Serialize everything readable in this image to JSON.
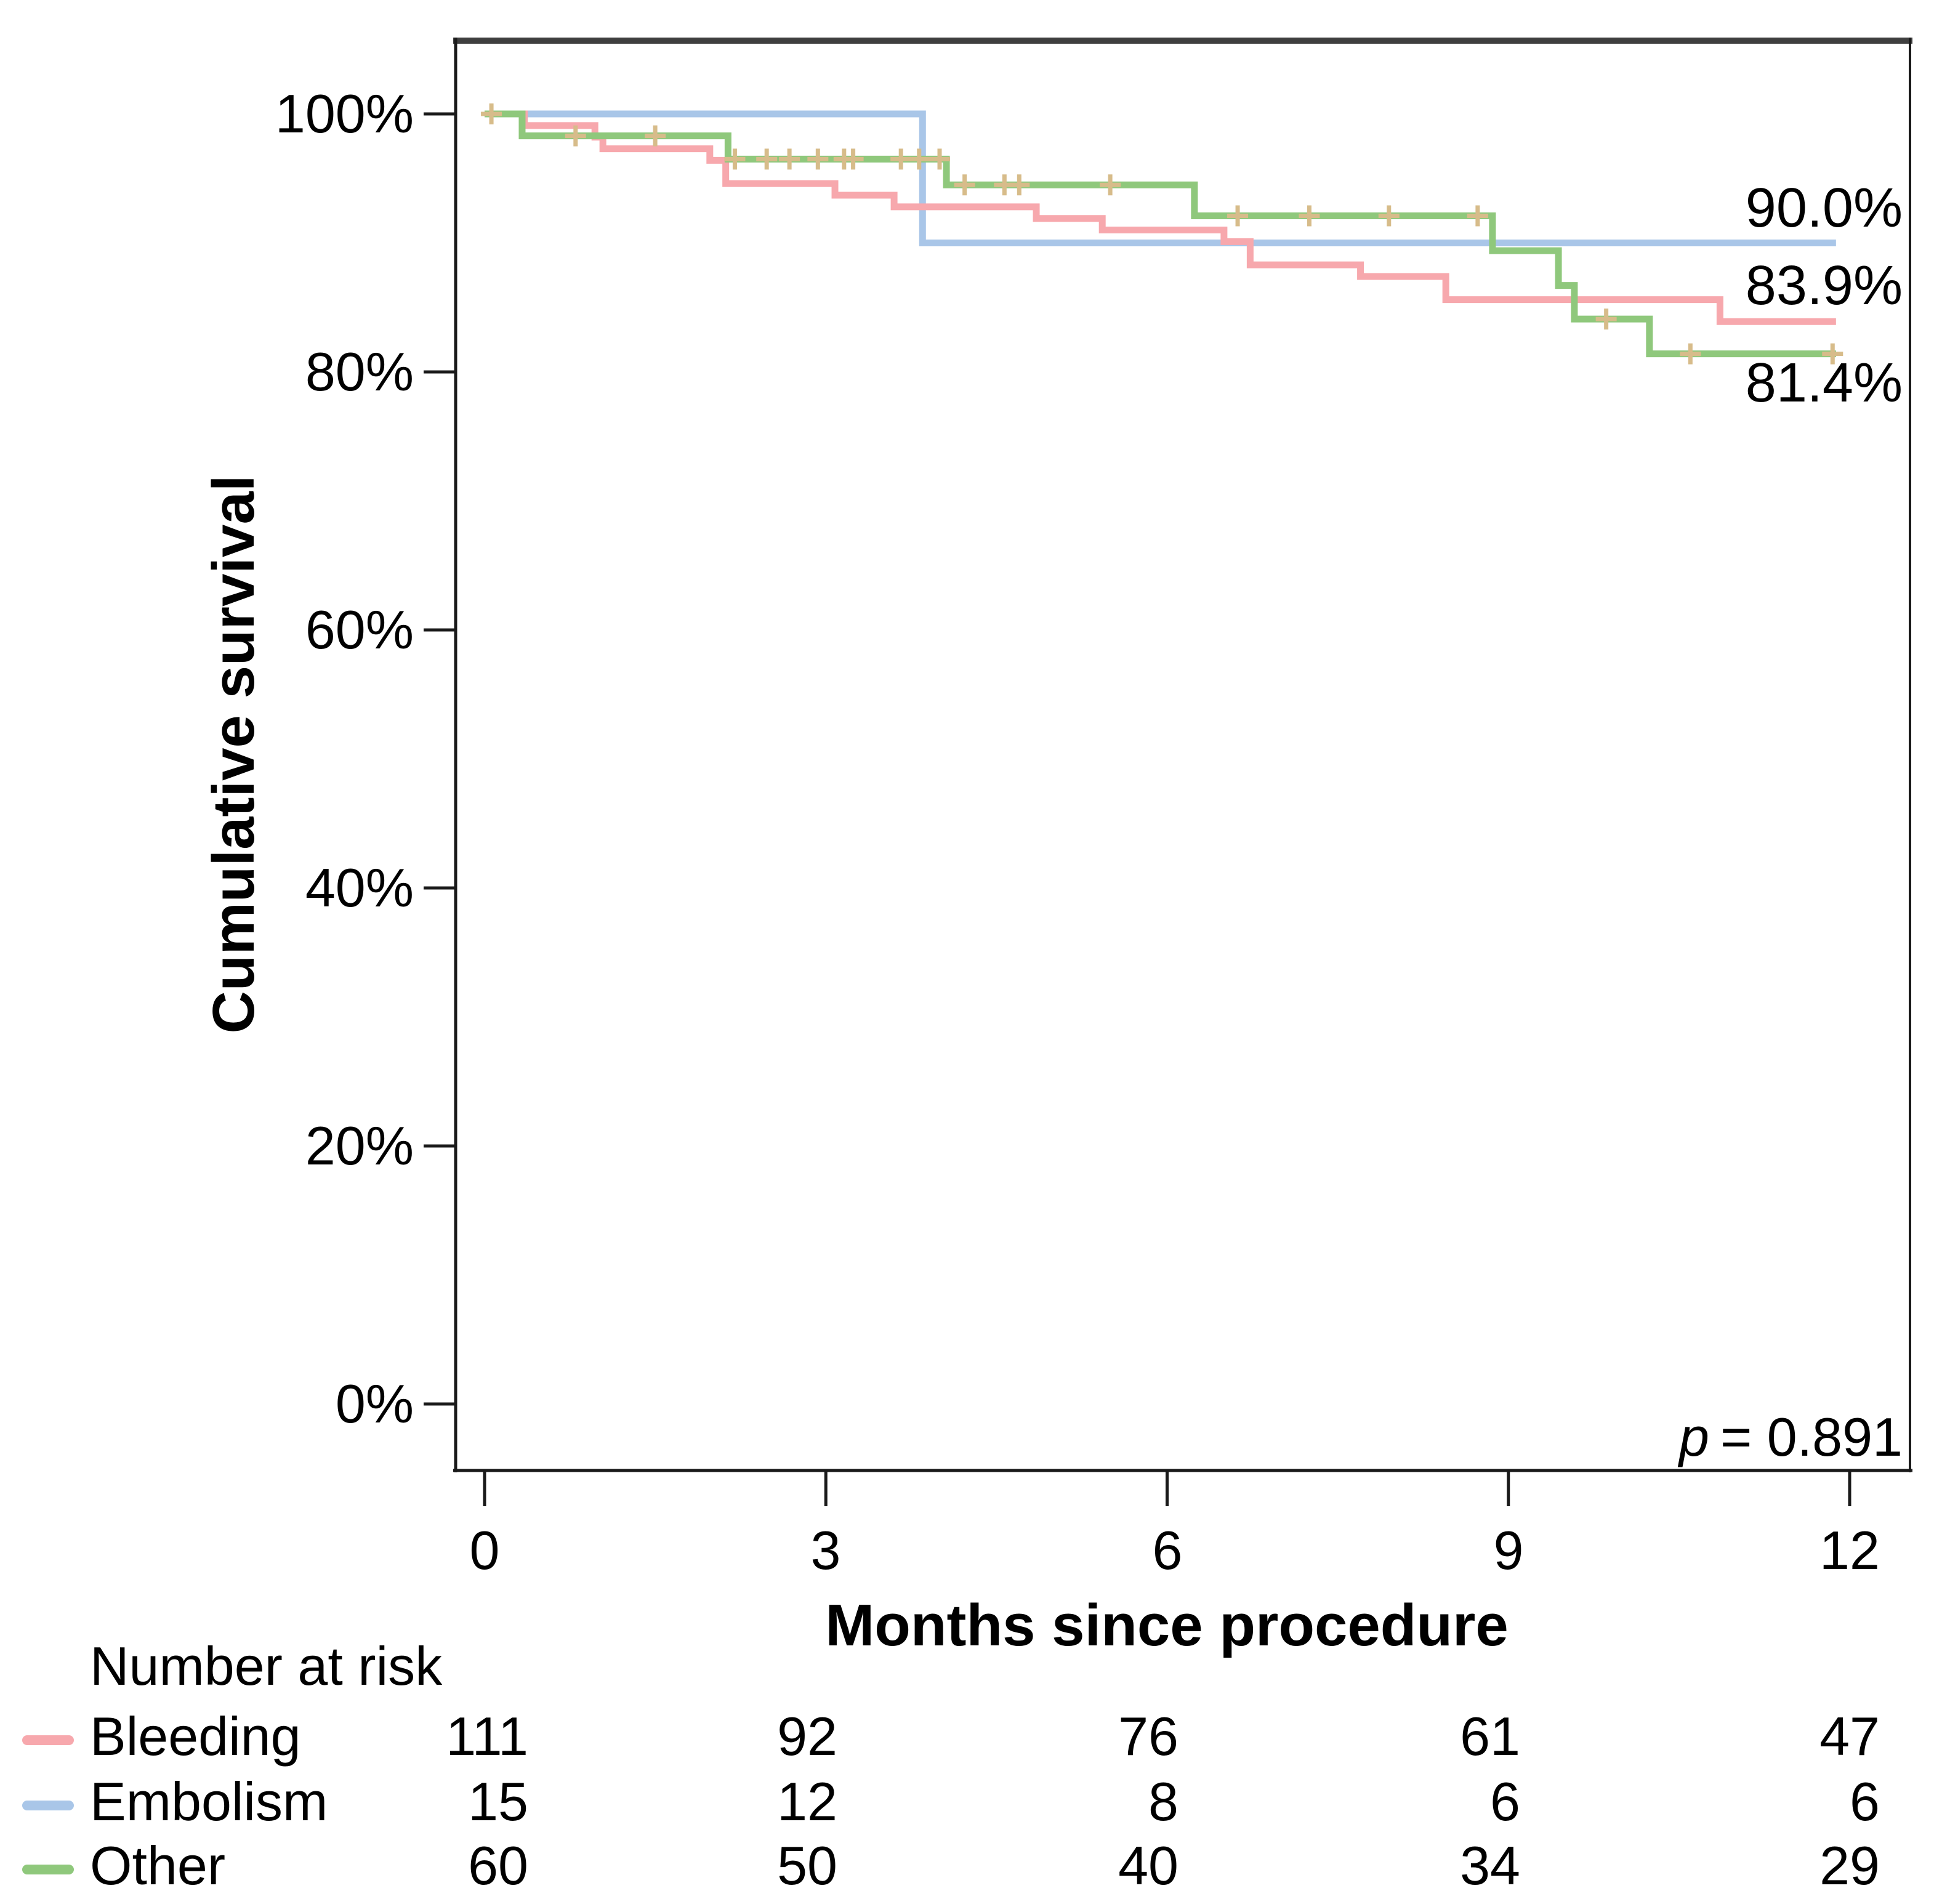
{
  "y_axis": {
    "label": "Cumulative survival",
    "ticks": [
      "100%",
      "80%",
      "60%",
      "40%",
      "20%",
      "0%"
    ]
  },
  "x_axis": {
    "label": "Months since procedure",
    "ticks": [
      "0",
      "3",
      "6",
      "9",
      "12"
    ]
  },
  "annotations": {
    "p_symbol": "p",
    "p_rest": "= 0.891",
    "end_labels": [
      "90.0%",
      "83.9%",
      "81.4%"
    ]
  },
  "colors": {
    "bleeding": "#F7A8AD",
    "embolism": "#A9C6E8",
    "other": "#8FC87C",
    "censor_marker": "#D7BC8A",
    "frame_top": "#3F3F3F",
    "axis": "#1a1a1a"
  },
  "risk_table": {
    "title": "Number at risk",
    "time_points": [
      0,
      3,
      6,
      9,
      12
    ],
    "rows": [
      {
        "label": "Bleeding",
        "color": "#F7A8AD",
        "values": [
          "111",
          "92",
          "76",
          "61",
          "47"
        ]
      },
      {
        "label": "Embolism",
        "color": "#A9C6E8",
        "values": [
          "15",
          "12",
          "8",
          "6",
          "6"
        ]
      },
      {
        "label": "Other",
        "color": "#8FC87C",
        "values": [
          "60",
          "50",
          "40",
          "34",
          "29"
        ]
      }
    ]
  },
  "chart_data": {
    "type": "line",
    "subtype": "kaplan-meier-step",
    "title": "",
    "xlabel": "Months since procedure",
    "ylabel": "Cumulative survival",
    "xlim": [
      0,
      12
    ],
    "ylim": [
      0,
      100
    ],
    "xticks": [
      0,
      3,
      6,
      9,
      12
    ],
    "yticks_pct": [
      100,
      80,
      60,
      40,
      20,
      0
    ],
    "grid": false,
    "legend_position": "bottom-risk-table",
    "p_value": "p = 0.891",
    "series": [
      {
        "name": "Bleeding",
        "color": "#F7A8AD",
        "start_value": 100,
        "steps": [
          [
            0.35,
            99.1
          ],
          [
            0.97,
            98.2
          ],
          [
            1.04,
            97.3
          ],
          [
            1.98,
            96.4
          ],
          [
            2.12,
            94.6
          ],
          [
            3.08,
            93.7
          ],
          [
            3.6,
            92.8
          ],
          [
            4.85,
            91.9
          ],
          [
            5.43,
            91.0
          ],
          [
            6.5,
            90.1
          ],
          [
            6.73,
            88.3
          ],
          [
            7.7,
            87.4
          ],
          [
            8.45,
            85.6
          ],
          [
            10.86,
            83.9
          ]
        ],
        "end_month": 11.88,
        "final_value": 83.9,
        "final_label": "83.9%",
        "censor_months": []
      },
      {
        "name": "Embolism",
        "color": "#A9C6E8",
        "start_value": 100,
        "steps": [
          [
            3.85,
            90.0
          ]
        ],
        "end_month": 11.88,
        "final_value": 90.0,
        "final_label": "90.0%",
        "censor_months": []
      },
      {
        "name": "Other",
        "color": "#8FC87C",
        "start_value": 100,
        "steps": [
          [
            0.33,
            98.3
          ],
          [
            2.14,
            96.5
          ],
          [
            4.06,
            94.5
          ],
          [
            6.24,
            92.1
          ],
          [
            8.86,
            89.4
          ],
          [
            9.44,
            86.7
          ],
          [
            9.58,
            84.1
          ],
          [
            10.24,
            81.4
          ]
        ],
        "end_month": 11.88,
        "final_value": 81.4,
        "final_label": "81.4%",
        "censor_months": [
          0.06,
          0.8,
          1.5,
          2.2,
          2.48,
          2.68,
          2.93,
          3.16,
          3.24,
          3.66,
          3.82,
          4.0,
          4.22,
          4.57,
          4.7,
          5.5,
          6.62,
          7.25,
          7.95,
          8.73,
          9.86,
          10.6,
          11.85
        ]
      }
    ]
  }
}
